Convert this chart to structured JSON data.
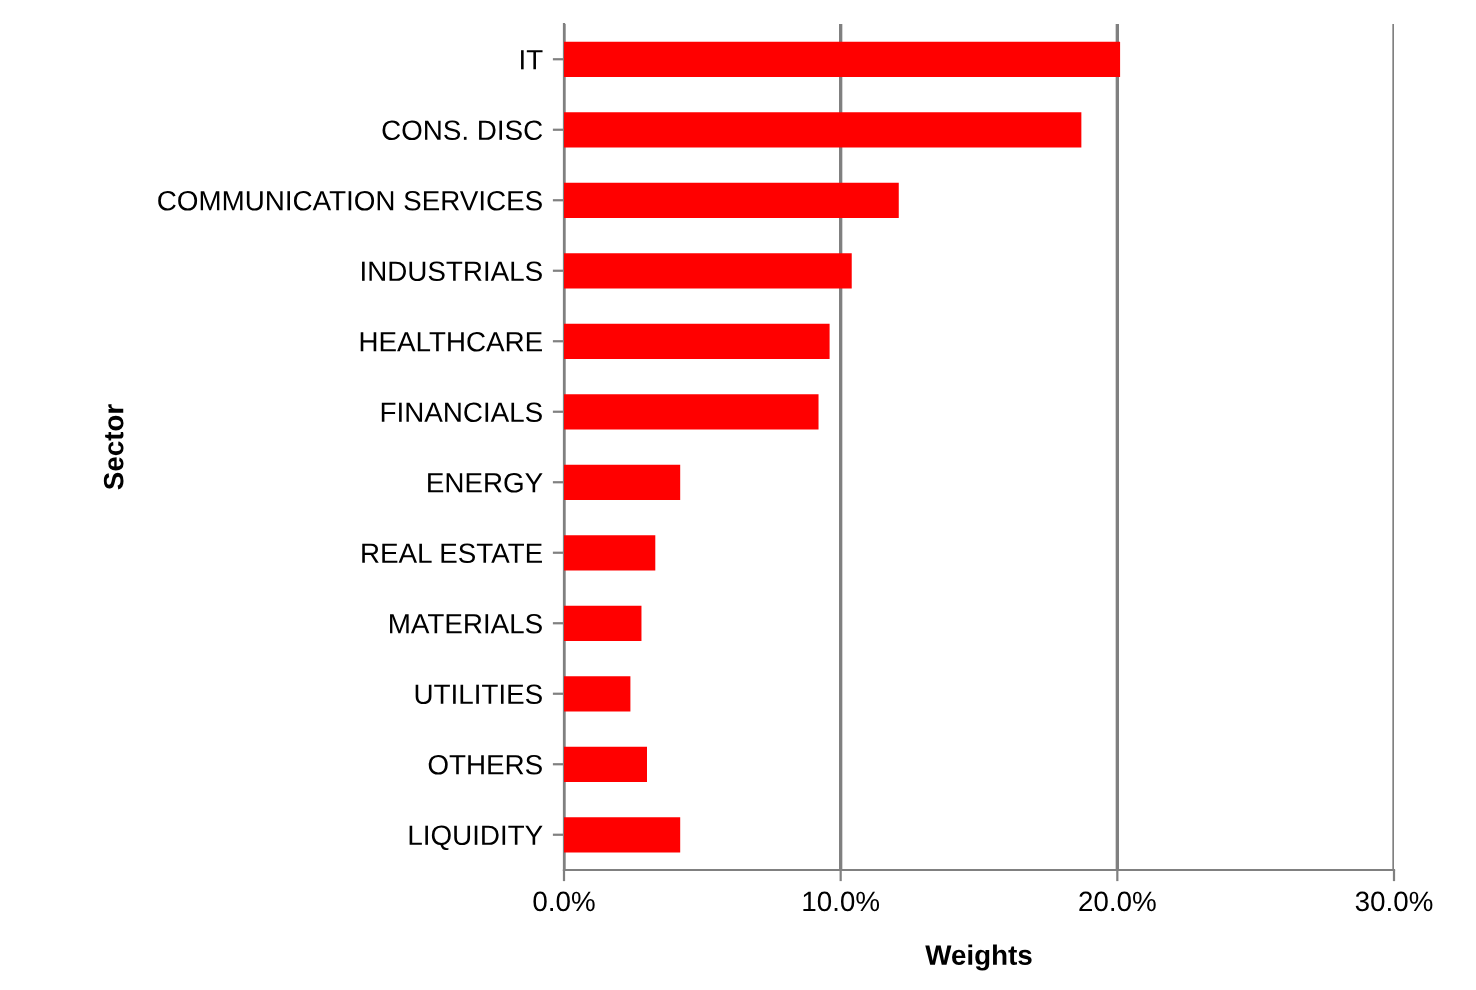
{
  "chart_data": {
    "type": "bar",
    "orientation": "horizontal",
    "xlabel": "Weights",
    "ylabel": "Sector",
    "categories": [
      "IT",
      "CONS. DISC",
      "COMMUNICATION SERVICES",
      "INDUSTRIALS",
      "HEALTHCARE",
      "FINANCIALS",
      "ENERGY",
      "REAL ESTATE",
      "MATERIALS",
      "UTILITIES",
      "OTHERS",
      "LIQUIDITY"
    ],
    "values": [
      20.1,
      18.7,
      12.1,
      10.4,
      9.6,
      9.2,
      4.2,
      3.3,
      2.8,
      2.4,
      3.0,
      4.2
    ],
    "color": "#ff0000",
    "xlim": [
      0,
      30
    ],
    "xticks": [
      {
        "value": 0,
        "label": "0.0%"
      },
      {
        "value": 10,
        "label": "10.0%"
      },
      {
        "value": 20,
        "label": "20.0%"
      },
      {
        "value": 30,
        "label": "30.0%"
      }
    ],
    "grid": "x",
    "legend": false
  }
}
